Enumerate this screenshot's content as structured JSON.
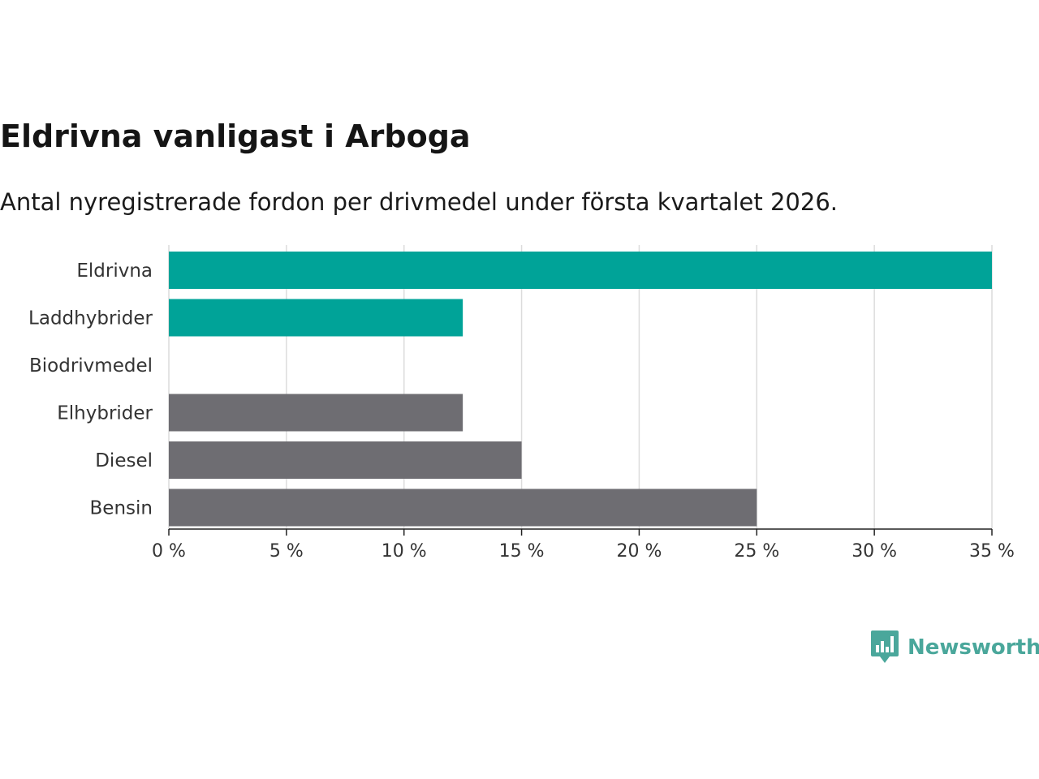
{
  "chart_data": {
    "type": "bar",
    "orientation": "horizontal",
    "title": "Eldrivna vanligast i Arboga",
    "subtitle": "Antal nyregistrerade fordon per drivmedel under första kvartalet 2026.",
    "categories": [
      "Eldrivna",
      "Laddhybrider",
      "Biodrivmedel",
      "Elhybrider",
      "Diesel",
      "Bensin"
    ],
    "values": [
      35,
      12.5,
      0,
      12.5,
      15,
      25
    ],
    "bar_colors": [
      "#00a398",
      "#00a398",
      "#00a398",
      "#6e6d72",
      "#6e6d72",
      "#6e6d72"
    ],
    "unit": "%",
    "xlim": [
      0,
      35
    ],
    "xticks": [
      0,
      5,
      10,
      15,
      20,
      25,
      30,
      35
    ],
    "xtick_labels": [
      "0 %",
      "5 %",
      "10 %",
      "15 %",
      "20 %",
      "25 %",
      "30 %",
      "35 %"
    ],
    "grid": true,
    "xlabel": "",
    "ylabel": ""
  },
  "brand": {
    "name": "Newsworthy",
    "color": "#4aa79b"
  }
}
